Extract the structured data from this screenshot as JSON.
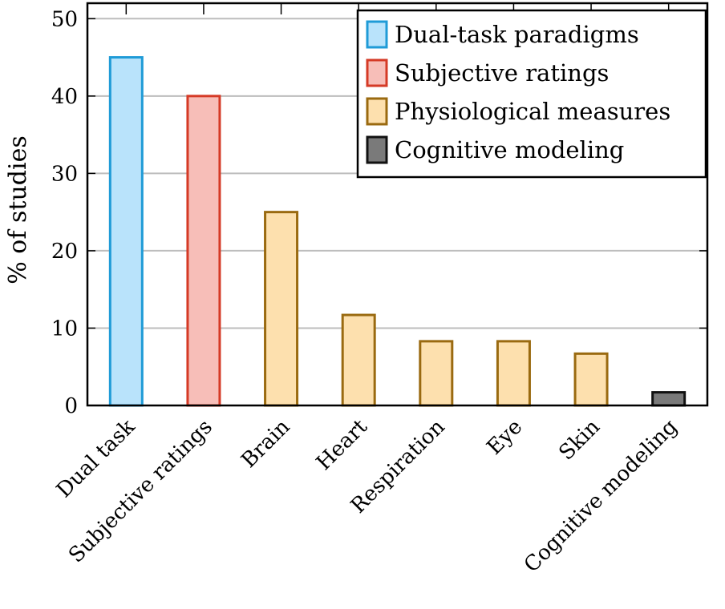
{
  "chart_data": {
    "type": "bar",
    "title": "",
    "xlabel": "",
    "ylabel": "% of studies",
    "ylim": [
      0,
      52
    ],
    "yticks": [
      0,
      10,
      20,
      30,
      40,
      50
    ],
    "grid": "horizontal",
    "legend_position": "top-right",
    "categories": [
      "Dual task",
      "Subjective ratings",
      "Brain",
      "Heart",
      "Respiration",
      "Eye",
      "Skin",
      "Cognitive modeling"
    ],
    "values": [
      45,
      40,
      25,
      11.7,
      8.3,
      8.3,
      6.7,
      1.7
    ],
    "category_group": [
      0,
      1,
      2,
      2,
      2,
      2,
      2,
      3
    ],
    "legend": [
      {
        "label": "Dual-task paradigms",
        "fill": "#b9e3fb",
        "stroke": "#1f9bd7"
      },
      {
        "label": "Subjective ratings",
        "fill": "#f7beb8",
        "stroke": "#d53a26"
      },
      {
        "label": "Physiological measures",
        "fill": "#fde0ae",
        "stroke": "#9a6a10"
      },
      {
        "label": "Cognitive modeling",
        "fill": "#7a7a7a",
        "stroke": "#111111"
      }
    ]
  }
}
